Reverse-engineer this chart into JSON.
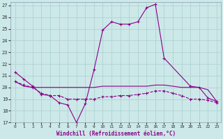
{
  "bg_color": "#cce8e8",
  "grid_color": "#aacfcf",
  "line_color": "#880088",
  "title": "Windchill (Refroidissement éolien,°C)",
  "xlim": [
    -0.5,
    23.5
  ],
  "ylim": [
    17,
    27.3
  ],
  "yticks": [
    17,
    18,
    19,
    20,
    21,
    22,
    23,
    24,
    25,
    26,
    27
  ],
  "xticks": [
    0,
    1,
    2,
    3,
    4,
    5,
    6,
    7,
    8,
    9,
    10,
    11,
    12,
    13,
    14,
    15,
    16,
    17,
    18,
    19,
    20,
    21,
    22,
    23
  ],
  "line1_x": [
    0,
    1,
    2,
    3,
    4,
    5,
    6,
    7,
    8,
    9,
    10,
    11,
    12,
    13,
    14,
    15,
    16,
    17,
    20,
    21,
    22,
    23
  ],
  "line1_y": [
    21.3,
    20.7,
    20.1,
    19.4,
    19.3,
    18.7,
    18.5,
    17.0,
    18.6,
    21.5,
    24.9,
    25.6,
    25.4,
    25.4,
    25.6,
    26.8,
    27.1,
    22.5,
    20.1,
    20.0,
    19.1,
    18.8
  ],
  "line2_x": [
    0,
    1,
    2,
    3,
    4,
    5,
    6,
    7,
    8,
    9,
    10,
    11,
    12,
    13,
    14,
    15,
    16,
    17,
    18,
    19,
    20,
    21,
    22,
    23
  ],
  "line2_y": [
    20.5,
    20.1,
    20.0,
    20.0,
    20.0,
    20.0,
    20.0,
    20.0,
    20.0,
    20.0,
    20.1,
    20.1,
    20.1,
    20.1,
    20.1,
    20.1,
    20.2,
    20.2,
    20.1,
    20.0,
    20.0,
    20.0,
    19.8,
    18.8
  ],
  "line3_x": [
    0,
    1,
    2,
    3,
    4,
    5,
    6,
    7,
    8,
    9,
    10,
    11,
    12,
    13,
    14,
    15,
    16,
    17,
    18,
    19,
    20,
    21,
    22,
    23
  ],
  "line3_y": [
    20.5,
    20.2,
    20.0,
    19.5,
    19.3,
    19.3,
    19.0,
    19.0,
    19.0,
    19.0,
    19.2,
    19.2,
    19.3,
    19.3,
    19.4,
    19.5,
    19.7,
    19.7,
    19.5,
    19.3,
    19.0,
    19.0,
    18.9,
    18.7
  ]
}
